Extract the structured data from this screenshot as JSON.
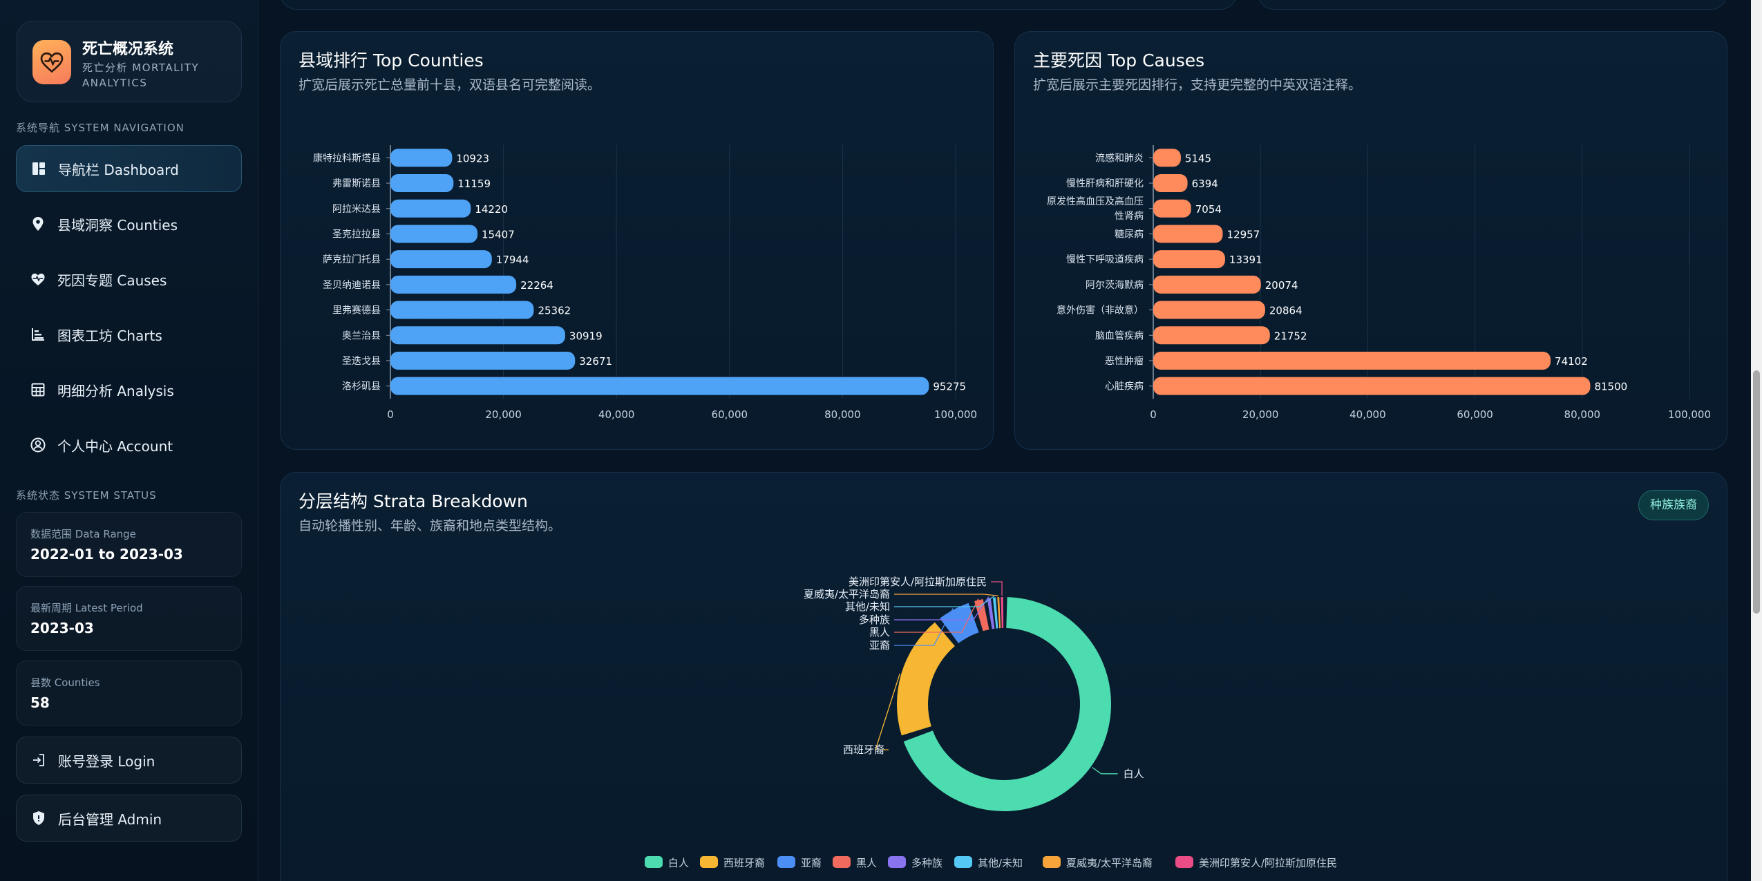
{
  "brand": {
    "title": "死亡概况系统",
    "subtitle": "死亡分析 MORTALITY ANALYTICS"
  },
  "nav": {
    "section_label": "系统导航 SYSTEM NAVIGATION",
    "items": [
      {
        "label": "导航栏 Dashboard",
        "icon": "dashboard-icon"
      },
      {
        "label": "县域洞察 Counties",
        "icon": "location-pin-icon"
      },
      {
        "label": "死因专题 Causes",
        "icon": "heart-pulse-icon"
      },
      {
        "label": "图表工坊 Charts",
        "icon": "chart-list-icon"
      },
      {
        "label": "明细分析 Analysis",
        "icon": "table-grid-icon"
      },
      {
        "label": "个人中心 Account",
        "icon": "user-circle-icon"
      }
    ]
  },
  "status": {
    "section_label": "系统状态 SYSTEM STATUS",
    "cards": [
      {
        "key": "数据范围 Data Range",
        "value": "2022-01 to 2023-03"
      },
      {
        "key": "最新周期 Latest Period",
        "value": "2023-03"
      },
      {
        "key": "县数 Counties",
        "value": "58"
      }
    ]
  },
  "actions": {
    "login": "账号登录 Login",
    "admin": "后台管理 Admin"
  },
  "counties_panel": {
    "title": "县域排行 Top Counties",
    "description": "扩宽后展示死亡总量前十县，双语县名可完整阅读。"
  },
  "causes_panel": {
    "title": "主要死因 Top Causes",
    "description": "扩宽后展示主要死因排行，支持更完整的中英双语注释。"
  },
  "strata_panel": {
    "title": "分层结构 Strata Breakdown",
    "description": "自动轮播性别、年龄、族裔和地点类型结构。",
    "badge": "种族族裔"
  },
  "colors": {
    "county_bar": "#4fa3f7",
    "cause_bar": "#ff8a5c"
  },
  "chart_data": [
    {
      "type": "bar",
      "orientation": "horizontal",
      "title": "县域排行 Top Counties",
      "categories": [
        "康特拉科斯塔县",
        "弗雷斯诺县",
        "阿拉米达县",
        "圣克拉拉县",
        "萨克拉门托县",
        "圣贝纳迪诺县",
        "里弗赛德县",
        "奥兰治县",
        "圣迭戈县",
        "洛杉矶县"
      ],
      "values": [
        10923,
        11159,
        14220,
        15407,
        17944,
        22264,
        25362,
        30919,
        32671,
        95275
      ],
      "xlim": [
        0,
        100000
      ],
      "xticks": [
        "0",
        "20,000",
        "40,000",
        "60,000",
        "80,000",
        "100,000"
      ],
      "grid": true
    },
    {
      "type": "bar",
      "orientation": "horizontal",
      "title": "主要死因 Top Causes",
      "categories": [
        "流感和肺炎",
        "慢性肝病和肝硬化",
        "原发性高血压及高血压性肾病",
        "糖尿病",
        "慢性下呼吸道疾病",
        "阿尔茨海默病",
        "意外伤害（非故意）",
        "脑血管疾病",
        "恶性肿瘤",
        "心脏疾病"
      ],
      "category_lines": [
        [
          "流感和肺炎"
        ],
        [
          "慢性肝病和肝硬化"
        ],
        [
          "原发性高血压及高血压",
          "性肾病"
        ],
        [
          "糖尿病"
        ],
        [
          "慢性下呼吸道疾病"
        ],
        [
          "阿尔茨海默病"
        ],
        [
          "意外伤害（非故意）"
        ],
        [
          "脑血管疾病"
        ],
        [
          "恶性肿瘤"
        ],
        [
          "心脏疾病"
        ]
      ],
      "values": [
        5145,
        6394,
        7054,
        12957,
        13391,
        20074,
        20864,
        21752,
        74102,
        81500
      ],
      "xlim": [
        0,
        100000
      ],
      "xticks": [
        "0",
        "20,000",
        "40,000",
        "60,000",
        "80,000",
        "100,000"
      ],
      "grid": true
    },
    {
      "type": "pie",
      "variant": "donut",
      "title": "分层结构 Strata Breakdown",
      "slices": [
        {
          "label": "白人",
          "value": 69.8,
          "color": "#4cdcb0"
        },
        {
          "label": "西班牙裔",
          "value": 19.5,
          "color": "#f7b733"
        },
        {
          "label": "亚裔",
          "value": 5.8,
          "color": "#4b8ff5"
        },
        {
          "label": "黑人",
          "value": 2.2,
          "color": "#f06a5e"
        },
        {
          "label": "多种族",
          "value": 0.9,
          "color": "#8a73ee"
        },
        {
          "label": "其他/未知",
          "value": 0.7,
          "color": "#56c8f5"
        },
        {
          "label": "夏威夷/太平洋岛裔",
          "value": 0.5,
          "color": "#f7a53a"
        },
        {
          "label": "美洲印第安人/阿拉斯加原住民",
          "value": 0.6,
          "color": "#ea4d85"
        }
      ],
      "legend_position": "bottom"
    }
  ]
}
